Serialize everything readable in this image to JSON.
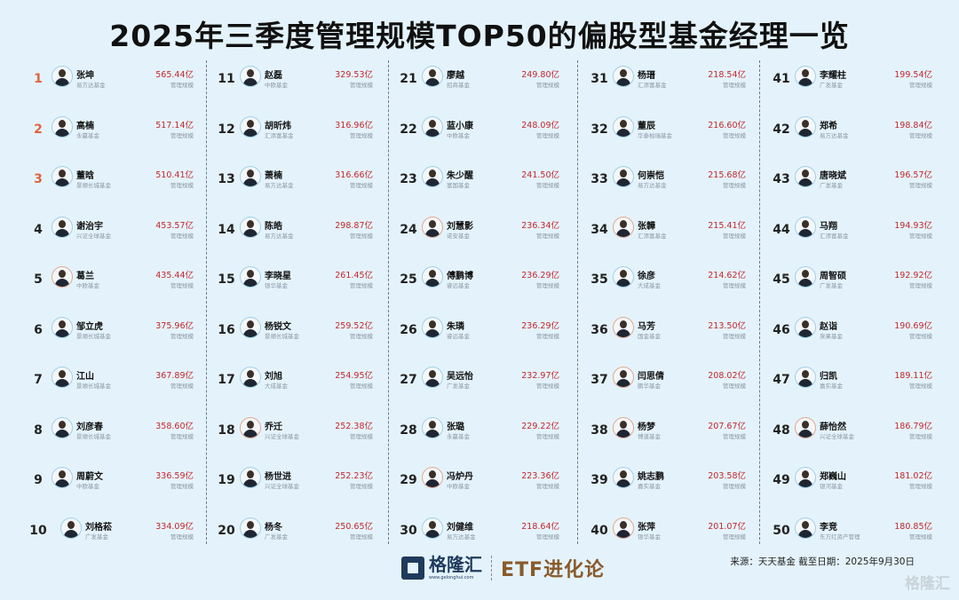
{
  "title": "2025年三季度管理规模TOP50的偏股型基金经理一览",
  "value_label": "管理规模",
  "colors": {
    "top3_rank": "#e0633f",
    "value": "#c4262e",
    "background": "#e4f3fb"
  },
  "managers": [
    {
      "rank": "1",
      "name": "张坤",
      "company": "易方达基金",
      "aum": "565.44亿"
    },
    {
      "rank": "2",
      "name": "高楠",
      "company": "永赢基金",
      "aum": "517.14亿"
    },
    {
      "rank": "3",
      "name": "董晗",
      "company": "景顺长城基金",
      "aum": "510.41亿"
    },
    {
      "rank": "4",
      "name": "谢治宇",
      "company": "兴证全球基金",
      "aum": "453.57亿"
    },
    {
      "rank": "5",
      "name": "葛兰",
      "company": "中欧基金",
      "aum": "435.44亿",
      "female": true
    },
    {
      "rank": "6",
      "name": "邹立虎",
      "company": "景顺长城基金",
      "aum": "375.96亿"
    },
    {
      "rank": "7",
      "name": "江山",
      "company": "景顺长城基金",
      "aum": "367.89亿"
    },
    {
      "rank": "8",
      "name": "刘彦春",
      "company": "景顺长城基金",
      "aum": "358.60亿"
    },
    {
      "rank": "9",
      "name": "周蔚文",
      "company": "中欧基金",
      "aum": "336.59亿"
    },
    {
      "rank": "10",
      "name": "刘格菘",
      "company": "广发基金",
      "aum": "334.09亿"
    },
    {
      "rank": "11",
      "name": "赵磊",
      "company": "中欧基金",
      "aum": "329.53亿"
    },
    {
      "rank": "12",
      "name": "胡昕炜",
      "company": "汇添富基金",
      "aum": "316.96亿"
    },
    {
      "rank": "13",
      "name": "萧楠",
      "company": "易方达基金",
      "aum": "316.66亿"
    },
    {
      "rank": "14",
      "name": "陈皓",
      "company": "易方达基金",
      "aum": "298.87亿"
    },
    {
      "rank": "15",
      "name": "李晓星",
      "company": "银华基金",
      "aum": "261.45亿"
    },
    {
      "rank": "16",
      "name": "杨锐文",
      "company": "景顺长城基金",
      "aum": "259.52亿"
    },
    {
      "rank": "17",
      "name": "刘旭",
      "company": "大成基金",
      "aum": "254.95亿"
    },
    {
      "rank": "18",
      "name": "乔迁",
      "company": "兴证全球基金",
      "aum": "252.38亿",
      "female": true
    },
    {
      "rank": "19",
      "name": "杨世进",
      "company": "兴证全球基金",
      "aum": "252.23亿"
    },
    {
      "rank": "20",
      "name": "杨冬",
      "company": "广发基金",
      "aum": "250.65亿"
    },
    {
      "rank": "21",
      "name": "廖越",
      "company": "招商基金",
      "aum": "249.80亿"
    },
    {
      "rank": "22",
      "name": "蓝小康",
      "company": "中欧基金",
      "aum": "248.09亿"
    },
    {
      "rank": "23",
      "name": "朱少醒",
      "company": "富国基金",
      "aum": "241.50亿"
    },
    {
      "rank": "24",
      "name": "刘慧影",
      "company": "诺安基金",
      "aum": "236.34亿",
      "female": true
    },
    {
      "rank": "25",
      "name": "傅鹏博",
      "company": "睿远基金",
      "aum": "236.29亿"
    },
    {
      "rank": "26",
      "name": "朱璘",
      "company": "睿远基金",
      "aum": "236.29亿"
    },
    {
      "rank": "27",
      "name": "吴远怡",
      "company": "广发基金",
      "aum": "232.97亿"
    },
    {
      "rank": "28",
      "name": "张璐",
      "company": "永赢基金",
      "aum": "229.22亿"
    },
    {
      "rank": "29",
      "name": "冯炉丹",
      "company": "中欧基金",
      "aum": "223.36亿",
      "female": true
    },
    {
      "rank": "30",
      "name": "刘健维",
      "company": "易方达基金",
      "aum": "218.64亿"
    },
    {
      "rank": "31",
      "name": "杨瑨",
      "company": "汇添富基金",
      "aum": "218.54亿"
    },
    {
      "rank": "32",
      "name": "董辰",
      "company": "华泰柏瑞基金",
      "aum": "216.60亿"
    },
    {
      "rank": "33",
      "name": "何崇恺",
      "company": "易方达基金",
      "aum": "215.68亿"
    },
    {
      "rank": "34",
      "name": "张韡",
      "company": "汇添富基金",
      "aum": "215.41亿",
      "female": true
    },
    {
      "rank": "35",
      "name": "徐彦",
      "company": "大成基金",
      "aum": "214.62亿"
    },
    {
      "rank": "36",
      "name": "马芳",
      "company": "国金基金",
      "aum": "213.50亿",
      "female": true
    },
    {
      "rank": "37",
      "name": "闫思倩",
      "company": "鹏华基金",
      "aum": "208.02亿",
      "female": true
    },
    {
      "rank": "38",
      "name": "杨梦",
      "company": "博道基金",
      "aum": "207.67亿",
      "female": true
    },
    {
      "rank": "39",
      "name": "姚志鹏",
      "company": "嘉实基金",
      "aum": "203.58亿"
    },
    {
      "rank": "40",
      "name": "张萍",
      "company": "银华基金",
      "aum": "201.07亿",
      "female": true
    },
    {
      "rank": "41",
      "name": "李耀柱",
      "company": "广发基金",
      "aum": "199.54亿"
    },
    {
      "rank": "42",
      "name": "郑希",
      "company": "易方达基金",
      "aum": "198.84亿"
    },
    {
      "rank": "43",
      "name": "唐晓斌",
      "company": "广发基金",
      "aum": "196.57亿"
    },
    {
      "rank": "44",
      "name": "马翔",
      "company": "汇添富基金",
      "aum": "194.93亿"
    },
    {
      "rank": "45",
      "name": "周智硕",
      "company": "广发基金",
      "aum": "192.92亿"
    },
    {
      "rank": "46",
      "name": "赵诣",
      "company": "泉果基金",
      "aum": "190.69亿"
    },
    {
      "rank": "47",
      "name": "归凯",
      "company": "嘉实基金",
      "aum": "189.11亿"
    },
    {
      "rank": "48",
      "name": "薛怡然",
      "company": "兴证全球基金",
      "aum": "186.79亿",
      "female": true
    },
    {
      "rank": "49",
      "name": "郑巍山",
      "company": "银河基金",
      "aum": "181.02亿"
    },
    {
      "rank": "50",
      "name": "李竞",
      "company": "东方红资产管理",
      "aum": "180.85亿"
    }
  ],
  "footer": {
    "brand": "格隆汇",
    "brand_url": "www.gelonghui.com",
    "column_name": "ETF进化论",
    "source": "来源：天天基金 截至日期：2025年9月30日",
    "watermark": "格隆汇"
  }
}
